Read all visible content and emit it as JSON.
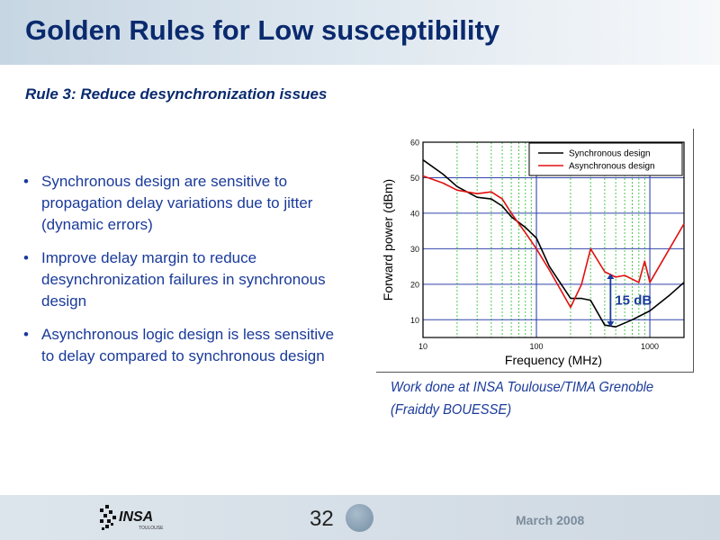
{
  "slide": {
    "title": "Golden Rules for Low susceptibility",
    "rule": "Rule 3: Reduce desynchronization issues",
    "bullets": [
      "Synchronous design are sensitive to propagation delay variations due to jitter (dynamic errors)",
      "Improve delay margin to reduce desynchronization failures in synchronous design",
      "Asynchronous logic design is less sensitive to delay compared to synchronous design"
    ],
    "bullet_glyph": "•",
    "credit_line1": "Work done at INSA Toulouse/TIMA Grenoble",
    "credit_line2": "(Fraiddy BOUESSE)"
  },
  "footer": {
    "page_number": "32",
    "date": "March 2008",
    "logo_text": "INSA",
    "logo_subtext": "TOULOUSE"
  },
  "colors": {
    "title": "#0a2a6e",
    "body_text": "#1a3a9a",
    "synchronous": "#000000",
    "asynchronous": "#e01010",
    "annotation": "#1a3a9a",
    "grid": "#22bb22"
  },
  "chart_data": {
    "type": "line",
    "xlabel": "Frequency (MHz)",
    "ylabel": "Forward power (dBm)",
    "x_scale": "log",
    "xlim": [
      10,
      2000
    ],
    "ylim": [
      5,
      60
    ],
    "x_ticks": [
      10,
      100,
      1000
    ],
    "y_ticks": [
      10,
      20,
      30,
      40,
      50,
      60
    ],
    "grid": true,
    "legend_position": "top-right",
    "series": [
      {
        "name": "Synchronous design",
        "color": "#000000",
        "x": [
          10,
          15,
          20,
          30,
          40,
          50,
          60,
          80,
          100,
          130,
          200,
          250,
          300,
          400,
          500,
          700,
          1000,
          1500,
          2000
        ],
        "y": [
          55,
          51,
          47.5,
          44.5,
          44,
          42,
          39,
          36,
          33,
          25,
          16,
          16,
          15.5,
          8.5,
          8,
          10,
          12.5,
          17,
          20.5
        ]
      },
      {
        "name": "Asynchronous design",
        "color": "#e01010",
        "x": [
          10,
          15,
          20,
          30,
          40,
          50,
          60,
          80,
          100,
          130,
          200,
          250,
          300,
          400,
          500,
          600,
          800,
          900,
          1000,
          2000
        ],
        "y": [
          50.5,
          48.5,
          46.5,
          45.5,
          46,
          44,
          40,
          34.5,
          30,
          24,
          13.5,
          20,
          30,
          23.5,
          22,
          22.5,
          20.5,
          26.5,
          20.5,
          37
        ]
      }
    ],
    "annotation": {
      "text": "15 dB",
      "x": 450,
      "y_from": 8,
      "y_to": 23
    }
  }
}
